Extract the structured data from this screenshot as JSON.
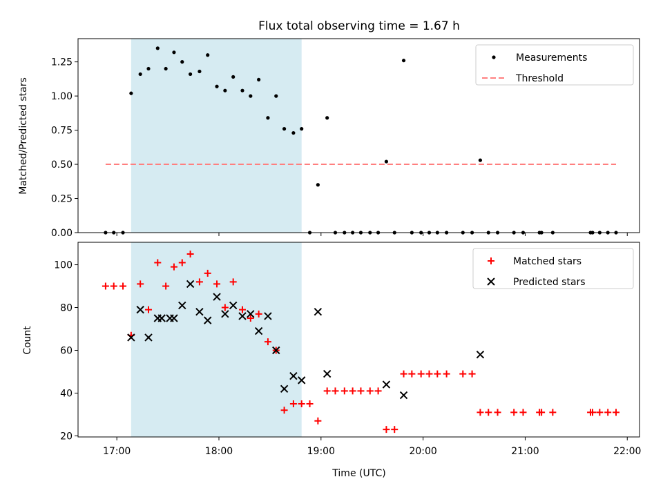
{
  "chart_data": [
    {
      "type": "scatter",
      "title": "Flux total observing time = 1.67 h",
      "xlabel": "",
      "ylabel": "Matched/Predicted stars",
      "xlim": [
        16.62,
        22.12
      ],
      "ylim": [
        0,
        1.42
      ],
      "yticks": [
        0,
        0.25,
        0.5,
        0.75,
        1.0,
        1.25
      ],
      "ytick_labels": [
        "0.00",
        "0.25",
        "0.50",
        "0.75",
        "1.00",
        "1.25"
      ],
      "xticks": [
        17,
        18,
        19,
        20,
        21,
        22
      ],
      "shaded_span": [
        17.14,
        18.81
      ],
      "legend_position": "top-right",
      "series": [
        {
          "name": "Measurements",
          "marker": "dot",
          "color": "#000000",
          "x": [
            16.89,
            16.97,
            17.06,
            17.14,
            17.23,
            17.31,
            17.4,
            17.48,
            17.56,
            17.64,
            17.72,
            17.81,
            17.89,
            17.98,
            18.06,
            18.14,
            18.23,
            18.31,
            18.39,
            18.48,
            18.56,
            18.64,
            18.73,
            18.81,
            18.89,
            18.97,
            19.06,
            19.14,
            19.23,
            19.31,
            19.39,
            19.48,
            19.56,
            19.64,
            19.72,
            19.81,
            19.89,
            19.98,
            20.06,
            20.14,
            20.23,
            20.39,
            20.48,
            20.56,
            20.64,
            20.73,
            20.89,
            20.98,
            21.14,
            21.16,
            21.27,
            21.64,
            21.66,
            21.73,
            21.81,
            21.89
          ],
          "y": [
            0,
            0,
            0,
            1.02,
            1.16,
            1.2,
            1.35,
            1.2,
            1.32,
            1.25,
            1.16,
            1.18,
            1.3,
            1.07,
            1.04,
            1.14,
            1.04,
            1.0,
            1.12,
            0.84,
            1.0,
            0.76,
            0.73,
            0.76,
            0,
            0.35,
            0.84,
            0,
            0,
            0,
            0,
            0,
            0,
            0.52,
            0,
            1.26,
            0,
            0,
            0,
            0,
            0,
            0,
            0,
            0.53,
            0,
            0,
            0,
            0,
            0,
            0,
            0,
            0,
            0,
            0,
            0,
            0
          ]
        },
        {
          "name": "Threshold",
          "marker": "dashed-line",
          "color": "#ff7f7f",
          "x": [
            16.89,
            21.89
          ],
          "y": [
            0.5,
            0.5
          ]
        }
      ]
    },
    {
      "type": "scatter",
      "title": "",
      "xlabel": "Time (UTC)",
      "ylabel": "Count",
      "xlim": [
        16.62,
        22.12
      ],
      "ylim": [
        19.5,
        110.5
      ],
      "yticks": [
        20,
        40,
        60,
        80,
        100
      ],
      "ytick_labels": [
        "20",
        "40",
        "60",
        "80",
        "100"
      ],
      "xticks": [
        17,
        18,
        19,
        20,
        21,
        22
      ],
      "xtick_labels": [
        "17:00",
        "18:00",
        "19:00",
        "20:00",
        "21:00",
        "22:00"
      ],
      "shaded_span": [
        17.14,
        18.81
      ],
      "legend_position": "top-right",
      "series": [
        {
          "name": "Matched stars",
          "marker": "plus",
          "color": "#ff0000",
          "x": [
            16.89,
            16.97,
            17.06,
            17.14,
            17.23,
            17.31,
            17.4,
            17.48,
            17.56,
            17.64,
            17.72,
            17.81,
            17.89,
            17.98,
            18.06,
            18.14,
            18.23,
            18.31,
            18.39,
            18.48,
            18.56,
            18.64,
            18.73,
            18.81,
            18.89,
            18.97,
            19.06,
            19.14,
            19.23,
            19.31,
            19.39,
            19.48,
            19.56,
            19.64,
            19.72,
            19.81,
            19.89,
            19.98,
            20.06,
            20.14,
            20.23,
            20.39,
            20.48,
            20.56,
            20.64,
            20.73,
            20.89,
            20.98,
            21.14,
            21.16,
            21.27,
            21.64,
            21.66,
            21.73,
            21.81,
            21.89
          ],
          "y": [
            90,
            90,
            90,
            67,
            91,
            79,
            101,
            90,
            99,
            101,
            105,
            92,
            96,
            91,
            80,
            92,
            79,
            75,
            77,
            64,
            60,
            32,
            35,
            35,
            35,
            27,
            41,
            41,
            41,
            41,
            41,
            41,
            41,
            23,
            23,
            49,
            49,
            49,
            49,
            49,
            49,
            49,
            49,
            31,
            31,
            31,
            31,
            31,
            31,
            31,
            31,
            31,
            31,
            31,
            31,
            31
          ]
        },
        {
          "name": "Predicted stars",
          "marker": "x",
          "color": "#000000",
          "x": [
            17.14,
            17.23,
            17.31,
            17.4,
            17.44,
            17.52,
            17.56,
            17.64,
            17.72,
            17.81,
            17.89,
            17.98,
            18.06,
            18.14,
            18.23,
            18.31,
            18.39,
            18.48,
            18.56,
            18.64,
            18.73,
            18.81,
            18.97,
            19.06,
            19.64,
            19.81,
            20.56
          ],
          "y": [
            66,
            79,
            66,
            75,
            75,
            75,
            75,
            81,
            91,
            78,
            74,
            85,
            77,
            81,
            76,
            77,
            69,
            76,
            60,
            42,
            48,
            46,
            78,
            49,
            44,
            39,
            58
          ]
        }
      ]
    }
  ]
}
